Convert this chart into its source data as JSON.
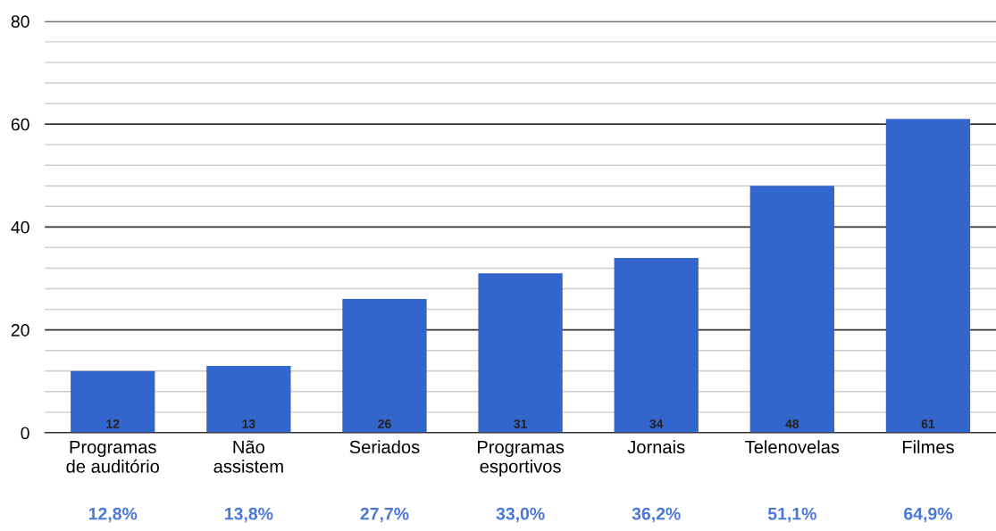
{
  "chart_data": {
    "type": "bar",
    "categories": [
      "Programas\nde auditório",
      "Não\nassistem",
      "Seriados",
      "Programas\nesportivos",
      "Jornais",
      "Telenovelas",
      "Filmes"
    ],
    "values": [
      12,
      13,
      26,
      31,
      34,
      48,
      61
    ],
    "color": "#3366cc",
    "data_labels": true,
    "ylim": [
      0,
      80
    ],
    "yticks": [
      0,
      {
        "value": 4,
        "label": null
      },
      {
        "value": 8,
        "label": null
      },
      {
        "value": 12,
        "label": null
      },
      {
        "value": 16,
        "label": null
      },
      20,
      {
        "value": 24,
        "label": null
      },
      {
        "value": 28,
        "label": null
      },
      {
        "value": 32,
        "label": null
      },
      {
        "value": 36,
        "label": null
      },
      40,
      {
        "value": 44,
        "label": null
      },
      {
        "value": 48,
        "label": null
      },
      {
        "value": 52,
        "label": null
      },
      {
        "value": 56,
        "label": null
      },
      60,
      {
        "value": 64,
        "label": null
      },
      {
        "value": 68,
        "label": null
      },
      {
        "value": 72,
        "label": null
      },
      {
        "value": 76,
        "label": null
      },
      80
    ],
    "grid": "y",
    "annotations": [
      "12,8%",
      "13,8%",
      "27,7%",
      "33,0%",
      "36,2%",
      "51,1%",
      "64,9%"
    ]
  }
}
